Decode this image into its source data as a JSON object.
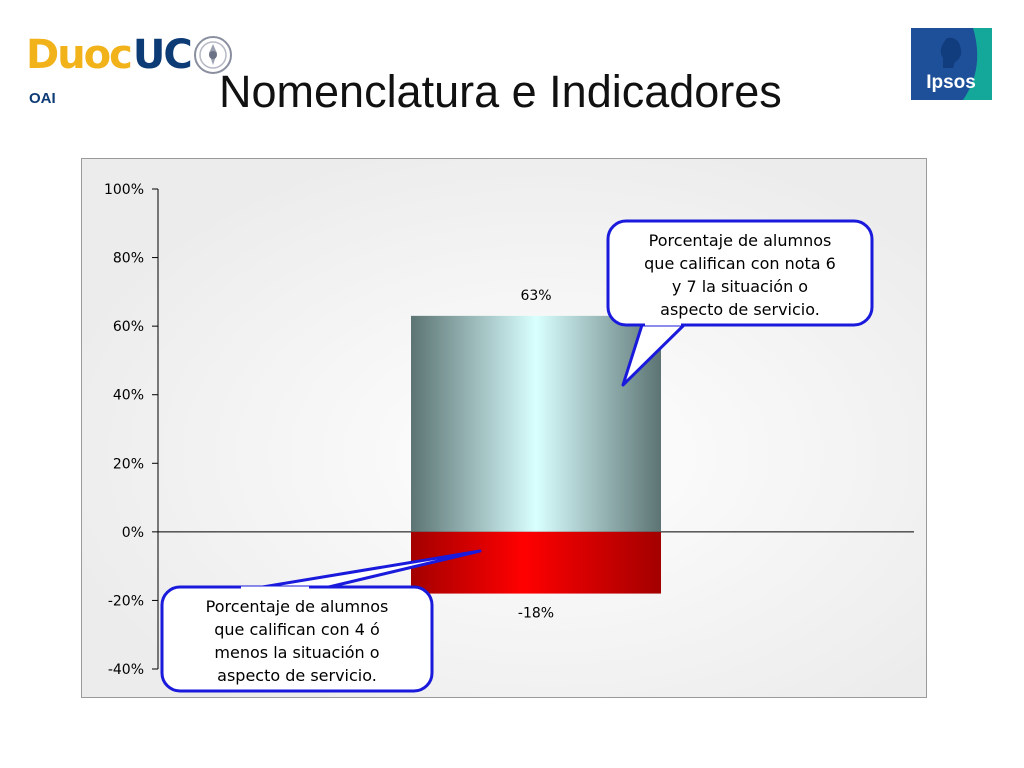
{
  "header": {
    "brand_left": "Duoc",
    "brand_right": "UC",
    "sub_label": "OAI",
    "title": "Nomenclatura e Indicadores",
    "partner_logo": "Ipsos"
  },
  "colors": {
    "duoc_yellow": "#f2b21a",
    "duoc_blue": "#0d3b75",
    "ipsos_blue": "#1e4f99",
    "ipsos_teal": "#14a89a",
    "positive_bar_edge": "#5c7473",
    "positive_bar_center": "#d9ffff",
    "negative_bar_edge": "#a30000",
    "negative_bar_center": "#ff0000",
    "callout_border": "#1a1adc"
  },
  "chart_data": {
    "type": "bar",
    "ylim": [
      -40,
      100
    ],
    "yticks": [
      100,
      80,
      60,
      40,
      20,
      0,
      -20,
      -40
    ],
    "ytick_labels": [
      "100%",
      "80%",
      "60%",
      "40%",
      "20%",
      "0%",
      "-20%",
      "-40%"
    ],
    "grid": false,
    "values": [
      63,
      -18
    ],
    "value_labels": [
      "63%",
      "-18%"
    ],
    "annotations": [
      {
        "target": "63%",
        "lines": [
          "Porcentaje de alumnos",
          "que califican con nota 6",
          "y 7 la situación o",
          "aspecto de servicio."
        ]
      },
      {
        "target": "-18%",
        "lines": [
          "Porcentaje de alumnos",
          "que califican con 4 ó",
          "menos la situación o",
          "aspecto de servicio."
        ]
      }
    ]
  }
}
